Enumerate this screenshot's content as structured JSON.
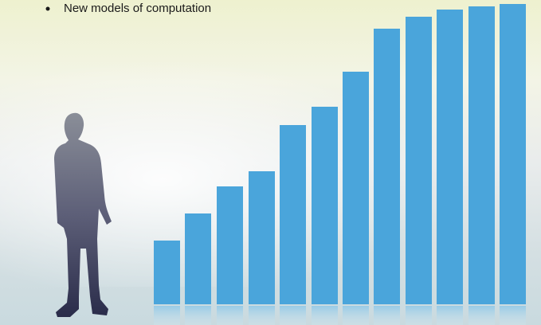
{
  "bullets": [
    "New models of computation"
  ]
}
